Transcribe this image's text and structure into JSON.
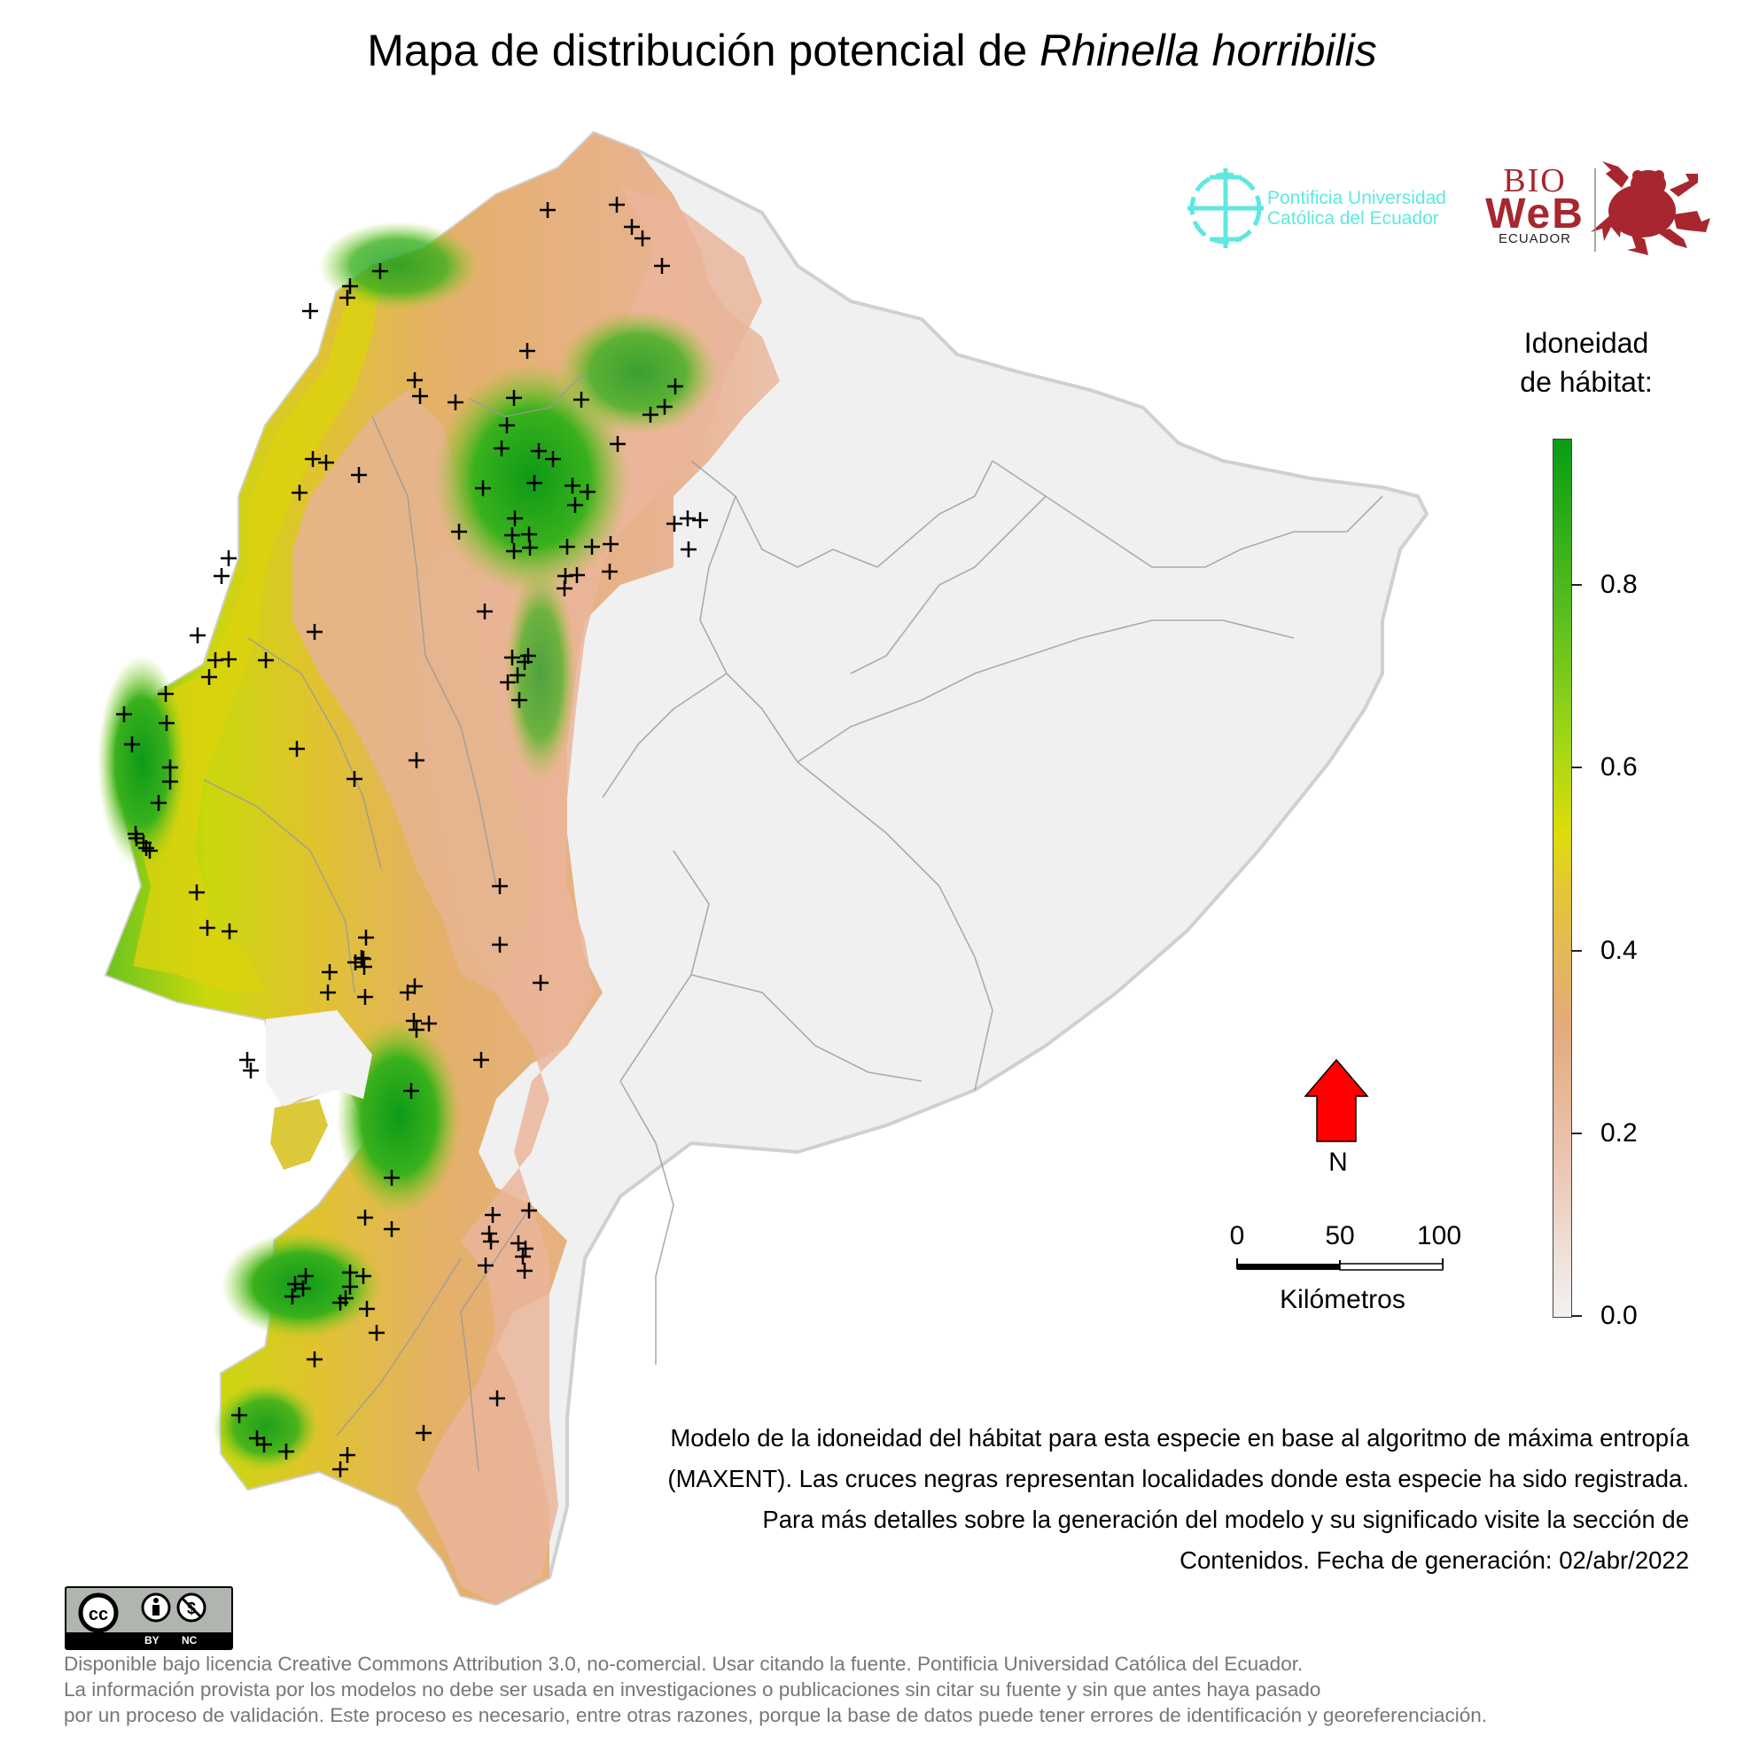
{
  "title": {
    "prefix": "Mapa de distribución potencial de ",
    "species": "Rhinella horribilis"
  },
  "legend": {
    "title_line1": "Idoneidad",
    "title_line2": "de hábitat:",
    "ticks": [
      "0.0",
      "0.2",
      "0.4",
      "0.6",
      "0.8"
    ],
    "colors": [
      "#f2f2f2",
      "#e8b49a",
      "#e3b14a",
      "#dedd0a",
      "#7dcb1c",
      "#0a9c16"
    ]
  },
  "north_arrow": {
    "label": "N",
    "color": "#ff0000"
  },
  "scale_bar": {
    "ticks": [
      "0",
      "50",
      "100"
    ],
    "unit": "Kilómetros"
  },
  "logos": {
    "puce_line1": "Pontificia Universidad",
    "puce_line2": "Católica del Ecuador",
    "bioweb_line1": "BIO",
    "bioweb_line2": "WeB",
    "bioweb_line3": "ECUADOR"
  },
  "description": "Modelo de la idoneidad del hábitat para esta especie en base al algoritmo de máxima entropía (MAXENT). Las cruces negras representan localidades donde esta especie ha sido registrada. Para más detalles sobre la generación del modelo y su significado visite la sección de Contenidos. Fecha de generación: 02/abr/2022",
  "license_badge": {
    "by": "BY",
    "nc": "NC",
    "cc": "cc"
  },
  "footer": {
    "line1": "Disponible bajo licencia Creative Commons Attribution 3.0, no-comercial. Usar citando la fuente. Pontificia Universidad Católica del Ecuador.",
    "line2": "La información provista por los modelos no debe ser usada en investigaciones o publicaciones sin citar su fuente y sin que antes haya pasado",
    "line3": "por un proceso de validación. Este proceso es necesario, entre otras razones, porque la base de datos puede tener errores de identificación y georeferenciación."
  }
}
